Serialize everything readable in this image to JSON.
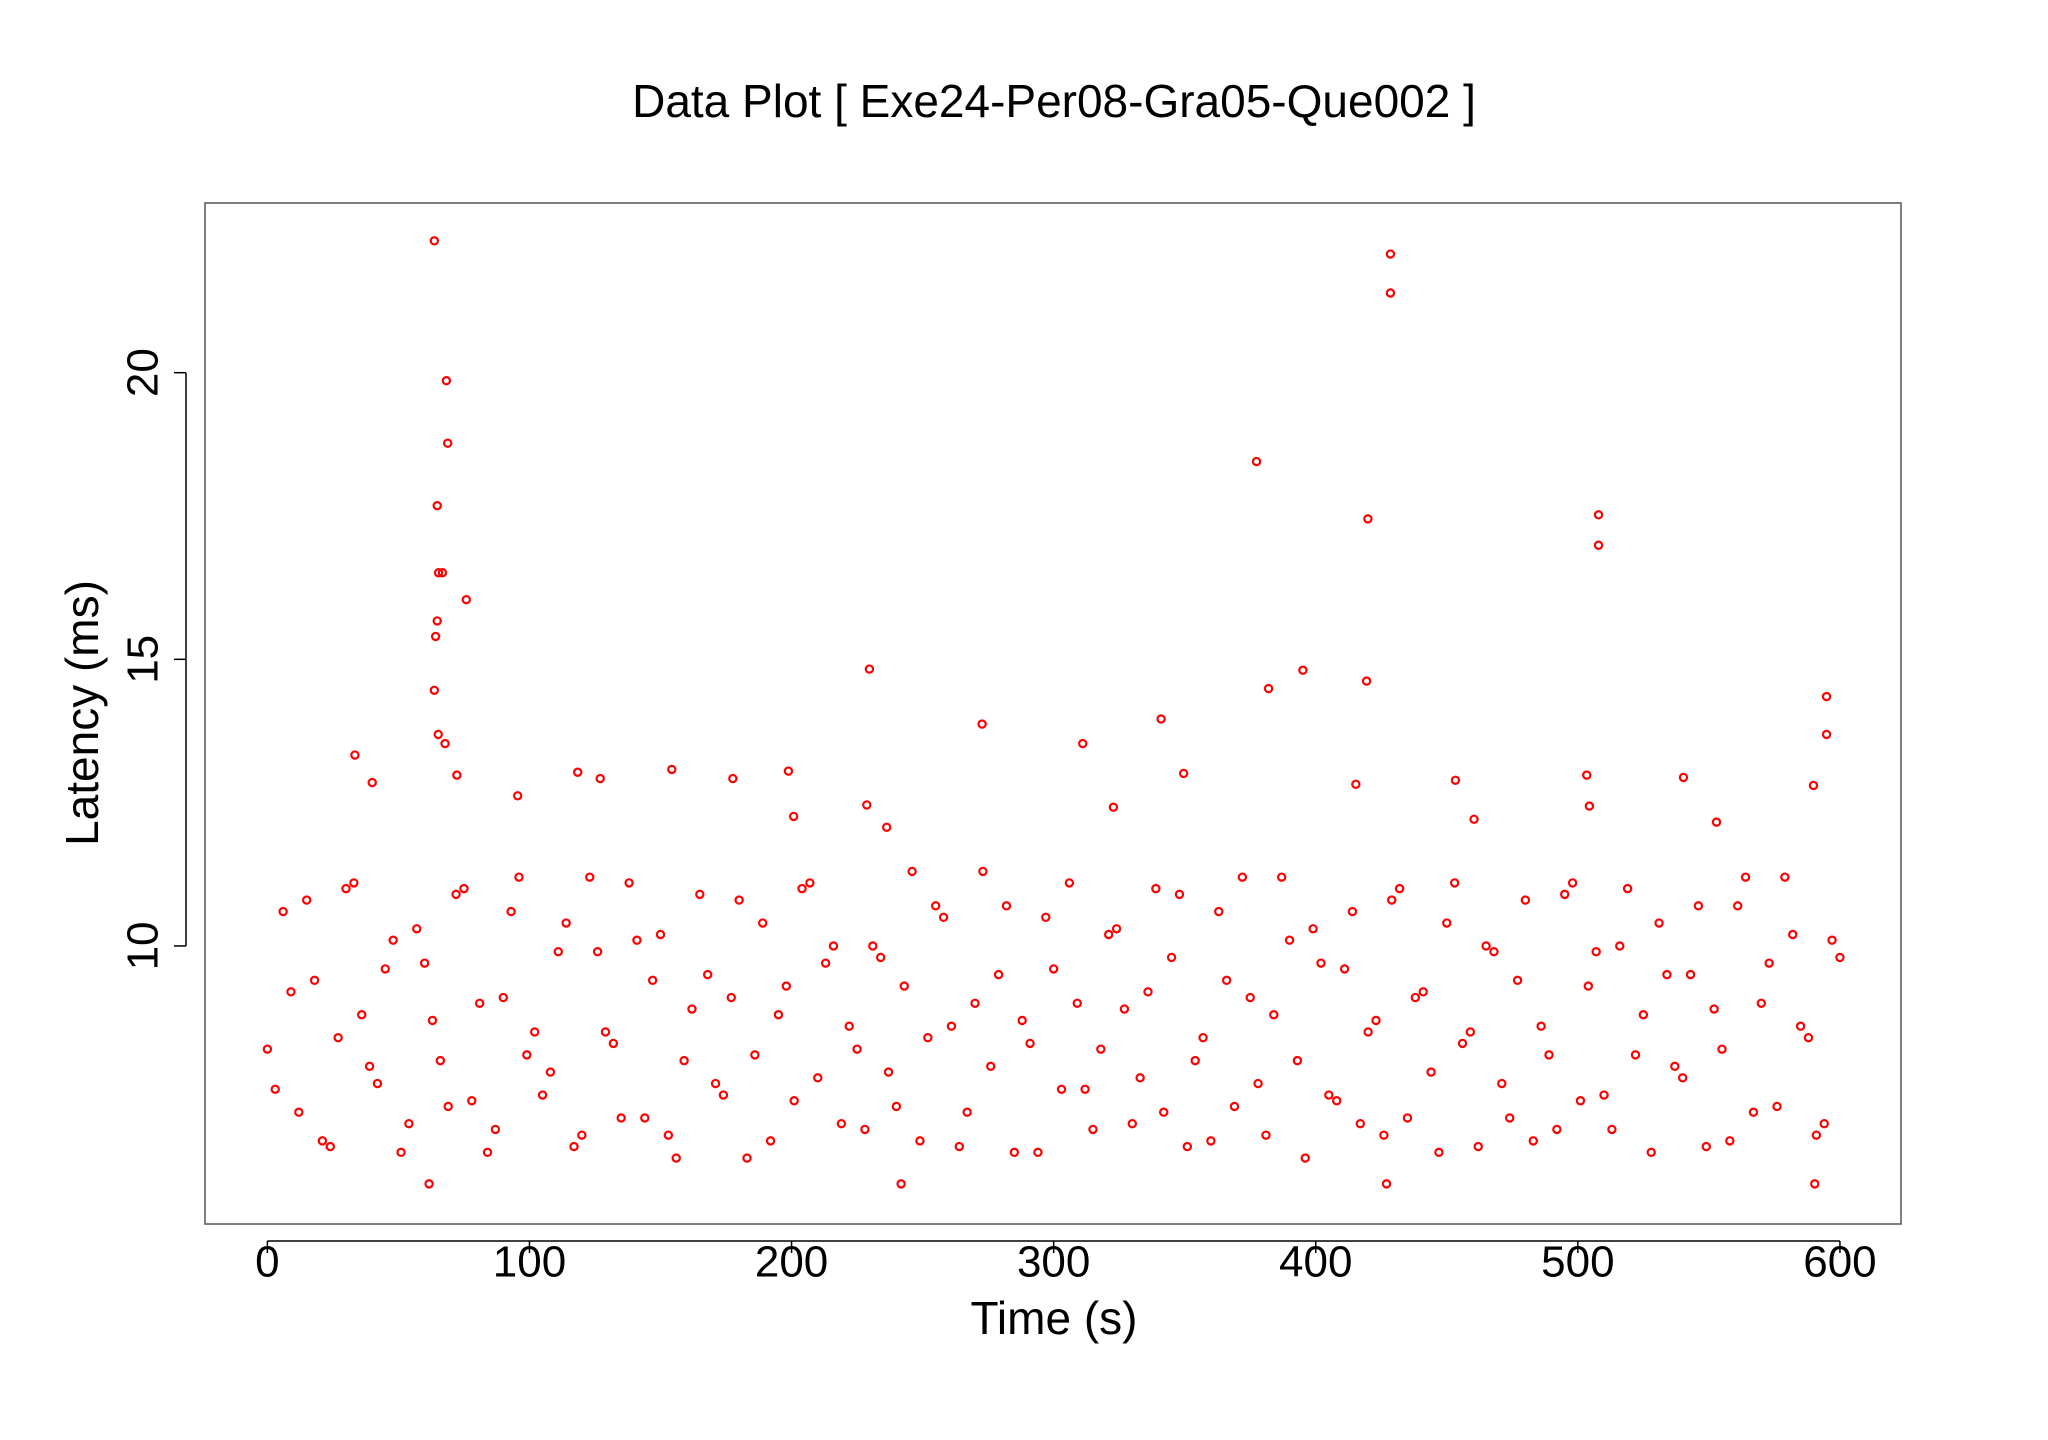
{
  "chart_data": {
    "type": "scatter",
    "title": "Data Plot [ Exe24-Per08-Gra05-Que002 ]",
    "x_label": "Time (s)",
    "y_label": "Latency (ms)",
    "color": "#ff0000",
    "xlim": [
      -23.8,
      623.3
    ],
    "ylim": [
      5.15,
      22.96
    ],
    "xticks": [
      0,
      100,
      200,
      300,
      400,
      500,
      600
    ],
    "yticks": [
      10,
      15,
      20
    ],
    "grid": false,
    "x": [
      0,
      6,
      12,
      18,
      24,
      30,
      36,
      42,
      48,
      54,
      60,
      66,
      72,
      78,
      84,
      90,
      96,
      102,
      108,
      114,
      120,
      126,
      132,
      138,
      144,
      150,
      156,
      162,
      168,
      174,
      180,
      186,
      192,
      198,
      204,
      210,
      216,
      222,
      228,
      234,
      240,
      246,
      252,
      258,
      264,
      270,
      276,
      282,
      288,
      294,
      300,
      306,
      312,
      318,
      324,
      330,
      336,
      342,
      348,
      354,
      360,
      366,
      372,
      378,
      384,
      390,
      396,
      402,
      408,
      414,
      420,
      426,
      432,
      438,
      444,
      450,
      456,
      462,
      468,
      474,
      480,
      486,
      492,
      498,
      504,
      510,
      516,
      522,
      528,
      534,
      540,
      546,
      552,
      558,
      564,
      570,
      576,
      582,
      588,
      594,
      600,
      3,
      9,
      15,
      21,
      27,
      33,
      39,
      45,
      51,
      57,
      63,
      69,
      75,
      81,
      87,
      93,
      99,
      105,
      111,
      117,
      123,
      129,
      135,
      141,
      147,
      153,
      159,
      165,
      171,
      177,
      183,
      189,
      195,
      201,
      207,
      213,
      219,
      225,
      231,
      237,
      243,
      249,
      255,
      261,
      267,
      273,
      279,
      285,
      291,
      297,
      303,
      309,
      315,
      321,
      327,
      333,
      339,
      345,
      351,
      357,
      363,
      369,
      375,
      381,
      387,
      393,
      399,
      405,
      411,
      417,
      423,
      429,
      435,
      441,
      447,
      453,
      459,
      465,
      471,
      477,
      483,
      489,
      495,
      501,
      507,
      513,
      519,
      525,
      531,
      537,
      543,
      549,
      555,
      561,
      567,
      573,
      579,
      585,
      591,
      597,
      63.7,
      428.5,
      428.5,
      68.3,
      68.8,
      377.4,
      64.8,
      419.9,
      507.9,
      507.9,
      65.3,
      66.8,
      75.9,
      64.8,
      64.2,
      63.7,
      229.7,
      395.1,
      419.4,
      382,
      594.9,
      594.9,
      341,
      272.7,
      311.1,
      65.2,
      67.8,
      33.4,
      40,
      154.3,
      198.8,
      118.4,
      127,
      177.6,
      349.6,
      453.3,
      415.3,
      540.3,
      503.4,
      589.9,
      72.3,
      95.5,
      228.7,
      504.4,
      460.4,
      200.8,
      236.3,
      322.8,
      552.9,
      61.7,
      241.8,
      427,
      590.4
    ],
    "values": [
      8.2,
      10.6,
      7.1,
      9.4,
      6.5,
      11.0,
      8.8,
      7.6,
      10.1,
      6.9,
      9.7,
      8.0,
      10.9,
      7.3,
      6.4,
      9.1,
      11.2,
      8.5,
      7.8,
      10.4,
      6.7,
      9.9,
      8.3,
      11.1,
      7.0,
      10.2,
      6.3,
      8.9,
      9.5,
      7.4,
      10.8,
      8.1,
      6.6,
      9.3,
      11.0,
      7.7,
      10.0,
      8.6,
      6.8,
      9.8,
      7.2,
      11.3,
      8.4,
      10.5,
      6.5,
      9.0,
      7.9,
      10.7,
      8.7,
      6.4,
      9.6,
      11.1,
      7.5,
      8.2,
      10.3,
      6.9,
      9.2,
      7.1,
      10.9,
      8.0,
      6.6,
      9.4,
      11.2,
      7.6,
      8.8,
      10.1,
      6.3,
      9.7,
      7.3,
      10.6,
      8.5,
      6.7,
      11.0,
      9.1,
      7.8,
      10.4,
      8.3,
      6.5,
      9.9,
      7.0,
      10.8,
      8.6,
      6.8,
      11.1,
      9.3,
      7.4,
      10.0,
      8.1,
      6.4,
      9.5,
      7.7,
      10.7,
      8.9,
      6.6,
      11.2,
      9.0,
      7.2,
      10.2,
      8.4,
      6.9,
      9.8,
      7.5,
      9.2,
      10.8,
      6.6,
      8.4,
      11.1,
      7.9,
      9.6,
      6.4,
      10.3,
      8.7,
      7.2,
      11.0,
      9.0,
      6.8,
      10.6,
      8.1,
      7.4,
      9.9,
      6.5,
      11.2,
      8.5,
      7.0,
      10.1,
      9.4,
      6.7,
      8.0,
      10.9,
      7.6,
      9.1,
      6.3,
      10.4,
      8.8,
      7.3,
      11.1,
      9.7,
      6.9,
      8.2,
      10.0,
      7.8,
      9.3,
      6.6,
      10.7,
      8.6,
      7.1,
      11.3,
      9.5,
      6.4,
      8.3,
      10.5,
      7.5,
      9.0,
      6.8,
      10.2,
      8.9,
      7.7,
      11.0,
      9.8,
      6.5,
      8.4,
      10.6,
      7.2,
      9.1,
      6.7,
      11.2,
      8.0,
      10.3,
      7.4,
      9.6,
      6.9,
      8.7,
      10.8,
      7.0,
      9.2,
      6.4,
      11.1,
      8.5,
      10.0,
      7.6,
      9.4,
      6.6,
      8.1,
      10.9,
      7.3,
      9.9,
      6.8,
      11.0,
      8.8,
      10.4,
      7.9,
      9.5,
      6.5,
      8.2,
      10.7,
      7.1,
      9.7,
      11.2,
      8.6,
      6.7,
      10.1,
      22.3,
      22.07,
      21.39,
      19.86,
      18.77,
      18.45,
      17.68,
      17.45,
      17.52,
      16.99,
      16.51,
      16.51,
      16.04,
      15.67,
      15.4,
      14.46,
      14.83,
      14.81,
      14.62,
      14.49,
      14.35,
      13.69,
      13.96,
      13.87,
      13.53,
      13.69,
      13.53,
      13.33,
      12.85,
      13.08,
      13.05,
      13.03,
      12.92,
      12.92,
      13.01,
      12.89,
      12.82,
      12.94,
      12.98,
      12.8,
      12.98,
      12.62,
      12.46,
      12.44,
      12.21,
      12.26,
      12.07,
      12.42,
      12.16,
      5.85,
      5.85,
      5.85,
      5.85
    ]
  }
}
